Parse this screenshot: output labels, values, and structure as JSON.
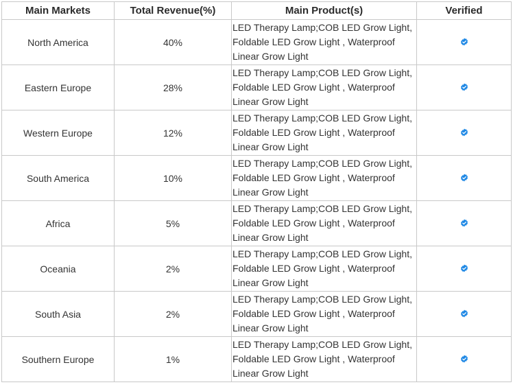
{
  "headers": {
    "market": "Main Markets",
    "revenue": "Total Revenue(%)",
    "product": "Main Product(s)",
    "verified": "Verified"
  },
  "colors": {
    "badge": "#1e88e5",
    "border": "#c8c8c8"
  },
  "rows": [
    {
      "market": "North America",
      "revenue": "40%",
      "product": " LED Therapy Lamp;COB LED Grow Light, Foldable LED Grow Light , Waterproof Linear Grow Light",
      "verified_icon": "verified-badge-icon"
    },
    {
      "market": "Eastern Europe",
      "revenue": "28%",
      "product": "LED Therapy Lamp;COB LED Grow Light, Foldable LED Grow Light , Waterproof Linear Grow Light",
      "verified_icon": "verified-badge-icon"
    },
    {
      "market": "Western Europe",
      "revenue": "12%",
      "product": "LED Therapy Lamp;COB LED Grow Light, Foldable LED Grow Light , Waterproof Linear Grow Light",
      "verified_icon": "verified-badge-icon"
    },
    {
      "market": "South America",
      "revenue": "10%",
      "product": "LED Therapy Lamp;COB LED Grow Light, Foldable LED Grow Light , Waterproof Linear Grow Light",
      "verified_icon": "verified-badge-icon"
    },
    {
      "market": "Africa",
      "revenue": "5%",
      "product": "LED Therapy Lamp;COB LED Grow Light, Foldable LED Grow Light , Waterproof Linear Grow Light",
      "verified_icon": "verified-badge-icon"
    },
    {
      "market": "Oceania",
      "revenue": "2%",
      "product": "LED Therapy Lamp;COB LED Grow Light, Foldable LED Grow Light , Waterproof Linear Grow Light",
      "verified_icon": "verified-badge-icon"
    },
    {
      "market": "South Asia",
      "revenue": "2%",
      "product": "LED Therapy Lamp;COB LED Grow Light, Foldable LED Grow Light , Waterproof Linear Grow Light",
      "verified_icon": "verified-badge-icon"
    },
    {
      "market": "Southern Europe",
      "revenue": "1%",
      "product": "LED Therapy Lamp;COB LED Grow Light, Foldable LED Grow Light , Waterproof Linear Grow Light",
      "verified_icon": "verified-badge-icon"
    }
  ]
}
